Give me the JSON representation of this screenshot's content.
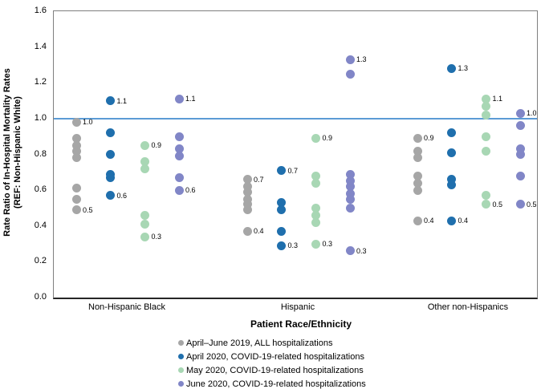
{
  "chart_data": {
    "type": "scatter",
    "title": "",
    "ylabel_line1": "Rate Ratio of In-Hospital Mortality Rates",
    "ylabel_line2": "(REF: Non-Hispanic White)",
    "xlabel": "Patient Race/Ethnicity",
    "ylim": [
      0.0,
      1.6
    ],
    "yticks": [
      "0.0",
      "0.2",
      "0.4",
      "0.6",
      "0.8",
      "1.0",
      "1.2",
      "1.4",
      "1.6"
    ],
    "grid": false,
    "legend_position": "bottom",
    "reference_line": 1.0,
    "reference_line_color": "#5b9bd5",
    "colors": {
      "april_june_2019": "#a6a6a6",
      "april_2020": "#1f6fad",
      "may_2020": "#a8d7b4",
      "june_2020": "#8186c7"
    },
    "series": [
      {
        "name": "April–June 2019, ALL hospitalizations",
        "color": "#a6a6a6"
      },
      {
        "name": "April 2020, COVID-19-related hospitalizations",
        "color": "#1f6fad"
      },
      {
        "name": "May 2020, COVID-19-related hospitalizations",
        "color": "#a8d7b4"
      },
      {
        "name": "June 2020, COVID-19-related hospitalizations",
        "color": "#8186c7"
      }
    ],
    "categories": [
      "Non-Hispanic Black",
      "Hispanic",
      "Other non-Hispanics"
    ],
    "groups": [
      {
        "category": "Non-Hispanic Black",
        "series": [
          {
            "points": [
              {
                "v": 0.98,
                "label": "1.0"
              },
              {
                "v": 0.89
              },
              {
                "v": 0.85
              },
              {
                "v": 0.82
              },
              {
                "v": 0.78
              },
              {
                "v": 0.61
              },
              {
                "v": 0.55
              },
              {
                "v": 0.49,
                "label": "0.5"
              }
            ]
          },
          {
            "points": [
              {
                "v": 1.1,
                "label": "1.1"
              },
              {
                "v": 0.92
              },
              {
                "v": 0.8
              },
              {
                "v": 0.69
              },
              {
                "v": 0.67
              },
              {
                "v": 0.57,
                "label": "0.6"
              }
            ]
          },
          {
            "points": [
              {
                "v": 0.85,
                "label": "0.9"
              },
              {
                "v": 0.76
              },
              {
                "v": 0.72
              },
              {
                "v": 0.46
              },
              {
                "v": 0.41
              },
              {
                "v": 0.34,
                "label": "0.3"
              }
            ]
          },
          {
            "points": [
              {
                "v": 1.11,
                "label": "1.1"
              },
              {
                "v": 0.9
              },
              {
                "v": 0.83
              },
              {
                "v": 0.79
              },
              {
                "v": 0.67
              },
              {
                "v": 0.6,
                "label": "0.6"
              }
            ]
          }
        ]
      },
      {
        "category": "Hispanic",
        "series": [
          {
            "points": [
              {
                "v": 0.66,
                "label": "0.7"
              },
              {
                "v": 0.62
              },
              {
                "v": 0.59
              },
              {
                "v": 0.55
              },
              {
                "v": 0.52
              },
              {
                "v": 0.49
              },
              {
                "v": 0.37,
                "label": "0.4"
              }
            ]
          },
          {
            "points": [
              {
                "v": 0.71,
                "label": "0.7"
              },
              {
                "v": 0.53
              },
              {
                "v": 0.49
              },
              {
                "v": 0.37
              },
              {
                "v": 0.29,
                "label": "0.3"
              }
            ]
          },
          {
            "points": [
              {
                "v": 0.89,
                "label": "0.9"
              },
              {
                "v": 0.68
              },
              {
                "v": 0.64
              },
              {
                "v": 0.5
              },
              {
                "v": 0.46
              },
              {
                "v": 0.42
              },
              {
                "v": 0.3,
                "label": "0.3"
              }
            ]
          },
          {
            "points": [
              {
                "v": 1.33,
                "label": "1.3"
              },
              {
                "v": 1.25
              },
              {
                "v": 0.69
              },
              {
                "v": 0.65
              },
              {
                "v": 0.62
              },
              {
                "v": 0.58
              },
              {
                "v": 0.55
              },
              {
                "v": 0.5
              },
              {
                "v": 0.26,
                "label": "0.3"
              }
            ]
          }
        ]
      },
      {
        "category": "Other non-Hispanics",
        "series": [
          {
            "points": [
              {
                "v": 0.89,
                "label": "0.9"
              },
              {
                "v": 0.82
              },
              {
                "v": 0.78
              },
              {
                "v": 0.68
              },
              {
                "v": 0.64
              },
              {
                "v": 0.6
              },
              {
                "v": 0.43,
                "label": "0.4"
              }
            ]
          },
          {
            "points": [
              {
                "v": 1.28,
                "label": "1.3"
              },
              {
                "v": 0.92
              },
              {
                "v": 0.81
              },
              {
                "v": 0.66
              },
              {
                "v": 0.63
              },
              {
                "v": 0.43,
                "label": "0.4"
              }
            ]
          },
          {
            "points": [
              {
                "v": 1.11,
                "label": "1.1"
              },
              {
                "v": 1.07
              },
              {
                "v": 1.02
              },
              {
                "v": 0.9
              },
              {
                "v": 0.82
              },
              {
                "v": 0.57
              },
              {
                "v": 0.52,
                "label": "0.5"
              }
            ]
          },
          {
            "points": [
              {
                "v": 1.03,
                "label": "1.0"
              },
              {
                "v": 0.96
              },
              {
                "v": 0.83
              },
              {
                "v": 0.8
              },
              {
                "v": 0.68
              },
              {
                "v": 0.52,
                "label": "0.5"
              }
            ]
          }
        ]
      }
    ]
  }
}
